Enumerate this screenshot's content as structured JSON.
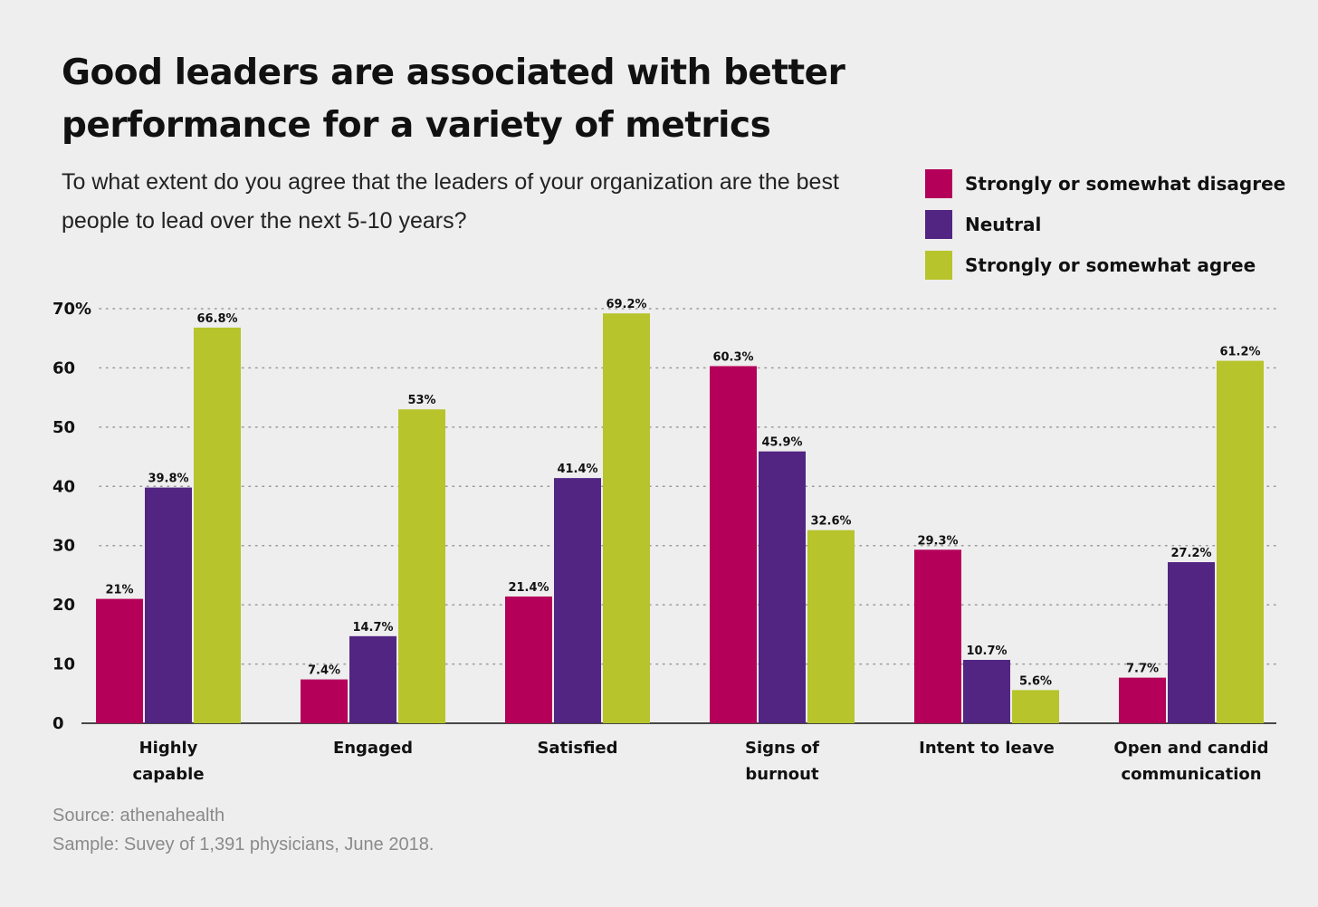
{
  "chart_data": {
    "type": "bar",
    "title": "Good leaders are associated with better performance for a variety of metrics",
    "subtitle": "To what extent do you agree that the leaders of your organization are the best people to lead over the  next 5-10 years?",
    "categories": [
      [
        "Highly",
        "capable"
      ],
      [
        "Engaged"
      ],
      [
        "Satisfied"
      ],
      [
        "Signs of",
        "burnout"
      ],
      [
        "Intent to leave"
      ],
      [
        "Open and candid",
        "communication"
      ]
    ],
    "series": [
      {
        "name": "Strongly or somewhat disagree",
        "color": "#b5005a",
        "values": [
          21,
          7.4,
          21.4,
          60.3,
          29.3,
          7.7
        ],
        "labels": [
          "21%",
          "7.4%",
          "21.4%",
          "60.3%",
          "29.3%",
          "7.7%"
        ]
      },
      {
        "name": "Neutral",
        "color": "#522583",
        "values": [
          39.8,
          14.7,
          41.4,
          45.9,
          10.7,
          27.2
        ],
        "labels": [
          "39.8%",
          "14.7%",
          "41.4%",
          "45.9%",
          "10.7%",
          "27.2%"
        ]
      },
      {
        "name": "Strongly or somewhat agree",
        "color": "#b7c42b",
        "values": [
          66.8,
          53,
          69.2,
          32.6,
          5.6,
          61.2
        ],
        "labels": [
          "66.8%",
          "53%",
          "69.2%",
          "32.6%",
          "5.6%",
          "61.2%"
        ]
      }
    ],
    "yticks": [
      "0",
      "10",
      "20",
      "30",
      "40",
      "50",
      "60",
      "70%"
    ],
    "ylim": [
      0,
      70
    ],
    "grid": true,
    "legend": "top-right",
    "xlabel": "",
    "ylabel": ""
  },
  "footer": {
    "source": "Source: athenahealth",
    "sample": "Sample: Suvey of 1,391 physicians, June 2018."
  }
}
